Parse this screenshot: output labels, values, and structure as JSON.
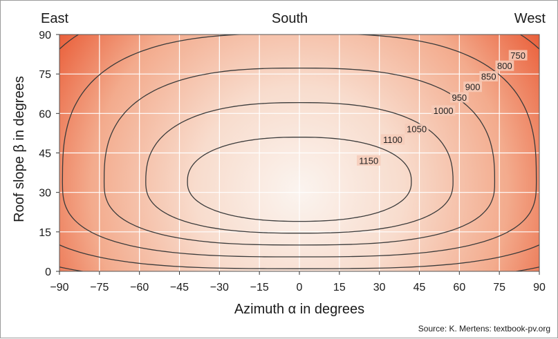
{
  "chart_data": {
    "type": "heatmap",
    "subtype": "contour",
    "title": "",
    "direction_labels": {
      "left": "East",
      "center": "South",
      "right": "West"
    },
    "xlabel": "Azimuth α in degrees",
    "ylabel": "Roof slope β in degrees",
    "x_ticks": [
      "−90",
      "−75",
      "−60",
      "−45",
      "−30",
      "−15",
      "0",
      "15",
      "30",
      "45",
      "60",
      "75",
      "90"
    ],
    "y_ticks": [
      "0",
      "15",
      "30",
      "45",
      "60",
      "75",
      "90"
    ],
    "xlim": [
      -90,
      90
    ],
    "ylim": [
      0,
      90
    ],
    "grid": true,
    "colors": {
      "low": "#e8542e",
      "mid": "#f6c8b4",
      "high": "#fbf4ef",
      "line": "#3a3a3a",
      "grid": "#ffffff"
    },
    "optimum": {
      "azimuth": 0,
      "slope": 34
    },
    "contours": [
      {
        "level": 750,
        "label": "750",
        "label_at": {
          "azimuth": 82,
          "slope": 82
        }
      },
      {
        "level": 800,
        "label": "800",
        "label_at": {
          "azimuth": 77,
          "slope": 78
        }
      },
      {
        "level": 850,
        "label": "850",
        "label_at": {
          "azimuth": 71,
          "slope": 74
        }
      },
      {
        "level": 900,
        "label": "900",
        "label_at": {
          "azimuth": 65,
          "slope": 70
        }
      },
      {
        "level": 950,
        "label": "950",
        "label_at": {
          "azimuth": 60,
          "slope": 66
        }
      },
      {
        "level": 1000,
        "label": "1000",
        "label_at": {
          "azimuth": 54,
          "slope": 61
        }
      },
      {
        "level": 1050,
        "label": "1050",
        "label_at": {
          "azimuth": 44,
          "slope": 54
        }
      },
      {
        "level": 1100,
        "label": "1100",
        "label_at": {
          "azimuth": 35,
          "slope": 50
        }
      },
      {
        "level": 1150,
        "label": "1150",
        "label_at": {
          "azimuth": 26,
          "slope": 42
        }
      }
    ],
    "source": "Source: K. Mertens: textbook-pv.org"
  }
}
